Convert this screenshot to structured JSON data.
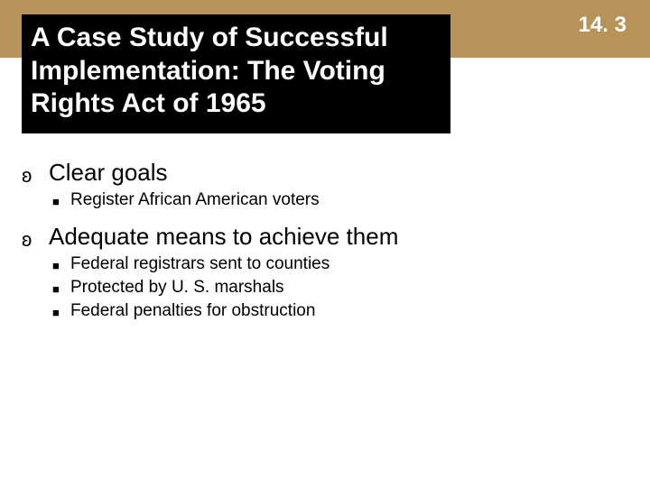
{
  "colors": {
    "band": "#b7935a",
    "title_bg": "#000000",
    "title_fg": "#ffffff",
    "section_fg": "#ffffff",
    "body_fg": "#000000"
  },
  "layout": {
    "slide_width": 720,
    "slide_height": 540,
    "band_height": 64
  },
  "typography": {
    "title_fontsize": 30,
    "section_fontsize": 24,
    "l1_fontsize": 26,
    "l2_fontsize": 19,
    "title_weight": "bold",
    "section_weight": "bold"
  },
  "bullets": {
    "l1_glyph": "ʚ",
    "l2_glyph": "■"
  },
  "section_number": "14. 3",
  "title": "A Case Study of Successful Implementation: The Voting Rights Act of 1965",
  "items": [
    {
      "label": "Clear goals",
      "children": [
        {
          "label": "Register African American voters"
        }
      ]
    },
    {
      "label": "Adequate means to achieve them",
      "children": [
        {
          "label": "Federal registrars sent to counties"
        },
        {
          "label": "Protected by U. S. marshals"
        },
        {
          "label": "Federal penalties for obstruction"
        }
      ]
    }
  ]
}
